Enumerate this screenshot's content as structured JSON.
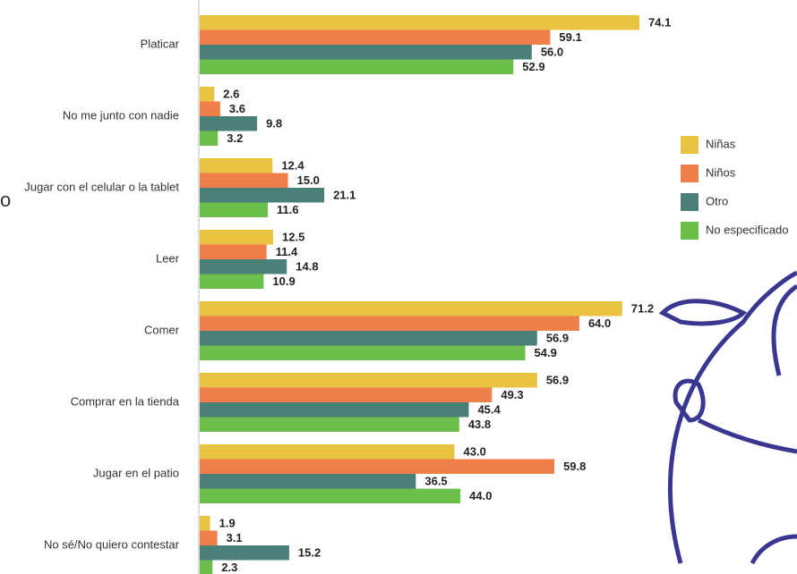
{
  "side_text": "o",
  "chart_data": {
    "type": "hbar",
    "categories": [
      "Platicar",
      "No me junto con nadie",
      "Jugar con el celular o la tablet",
      "Leer",
      "Comer",
      "Comprar en la tienda",
      "Jugar en el patio",
      "No sé/No quiero contestar"
    ],
    "series": [
      {
        "name": "Niñas",
        "color": "#e8c340",
        "values": [
          74.1,
          2.6,
          12.4,
          12.5,
          71.2,
          56.9,
          43.0,
          1.9
        ],
        "value_labels": [
          "74.1",
          "2.6",
          "12.4",
          "12.5",
          "71.2",
          "56.9",
          "43.0",
          "1.9"
        ]
      },
      {
        "name": "Niños",
        "color": "#f07f4a",
        "values": [
          59.1,
          3.6,
          15.0,
          11.4,
          64.0,
          49.3,
          59.8,
          3.1
        ],
        "value_labels": [
          "59.1",
          "3.6",
          "15.0",
          "11.4",
          "64.0",
          "49.3",
          "59.8",
          "3.1"
        ]
      },
      {
        "name": "Otro",
        "color": "#4a7f7a",
        "values": [
          56.0,
          9.8,
          21.1,
          14.8,
          56.9,
          45.4,
          36.5,
          15.2
        ],
        "value_labels": [
          "56.0",
          "9.8",
          "21.1",
          "14.8",
          "56.9",
          "45.4",
          "36.5",
          "15.2"
        ]
      },
      {
        "name": "No especificado",
        "color": "#6abf4b",
        "values": [
          52.9,
          3.2,
          11.6,
          10.9,
          54.9,
          43.8,
          44.0,
          2.3
        ],
        "value_labels": [
          "52.9",
          "3.2",
          "11.6",
          "10.9",
          "54.9",
          "43.8",
          "44.0",
          "2.3"
        ]
      }
    ],
    "xlim": [
      0,
      75
    ]
  }
}
